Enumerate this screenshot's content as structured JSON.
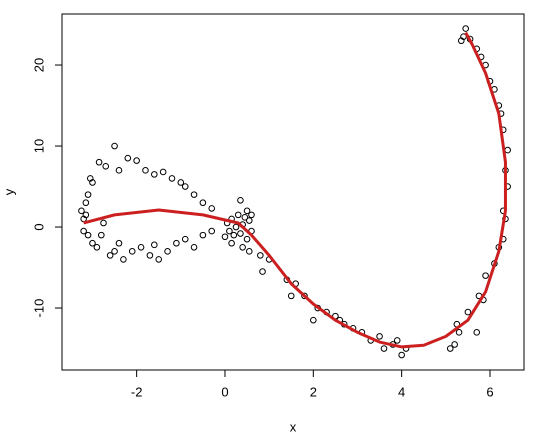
{
  "chart_data": {
    "type": "scatter",
    "xlabel": "x",
    "ylabel": "y",
    "xlim": [
      -3.69,
      6.77
    ],
    "ylim": [
      -17.65,
      26.3
    ],
    "xticks": [
      -2,
      0,
      2,
      4,
      6
    ],
    "yticks": [
      -10,
      0,
      10,
      20
    ],
    "series": [
      {
        "color": "#000000",
        "mode": "points",
        "x": [
          -3.2,
          -3.15,
          -3.1,
          -3.2,
          -3.05,
          -3.0,
          -3.1,
          -3.15,
          -3.25,
          -3.0,
          -2.9,
          -2.85,
          -2.7,
          -2.6,
          -2.8,
          -2.75,
          -2.5,
          -2.4,
          -2.2,
          -2.0,
          -1.8,
          -1.6,
          -1.4,
          -1.2,
          -1.0,
          -0.9,
          -0.7,
          -0.5,
          -0.3,
          -2.5,
          -2.3,
          -2.1,
          -1.9,
          -1.7,
          -1.5,
          -1.3,
          -1.1,
          -0.9,
          -0.7,
          -0.5,
          -0.3,
          -1.6,
          -2.4,
          0.05,
          0.1,
          0.15,
          0.2,
          0.25,
          0.3,
          0.35,
          0.4,
          0.45,
          0.5,
          0.55,
          0.6,
          0.6,
          0.5,
          0.35,
          0.15,
          0.4,
          0.0,
          0.55,
          0.8,
          1.0,
          0.85,
          1.4,
          1.5,
          1.6,
          1.8,
          2.0,
          2.1,
          2.3,
          2.5,
          2.6,
          2.7,
          2.9,
          3.1,
          3.3,
          3.5,
          3.6,
          3.8,
          3.9,
          4.0,
          4.1,
          5.1,
          5.2,
          5.25,
          5.3,
          5.5,
          5.7,
          5.75,
          5.85,
          5.9,
          6.1,
          6.2,
          6.3,
          6.35,
          6.3,
          6.4,
          6.35,
          6.4,
          6.3,
          6.25,
          6.2,
          6.1,
          6.0,
          5.9,
          5.8,
          5.7,
          5.55,
          5.45,
          5.4,
          5.35
        ],
        "values": [
          1,
          3,
          4,
          -0.5,
          6,
          5.5,
          -1,
          1.5,
          2,
          -2,
          -2.5,
          8,
          7.5,
          -3.5,
          -1,
          0.5,
          10,
          7,
          8.5,
          8.2,
          7,
          6.5,
          6.8,
          6,
          5.5,
          5,
          4,
          3,
          2.3,
          -3,
          -4,
          -3,
          -2.5,
          -3.5,
          -4,
          -3,
          -2,
          -1.5,
          -2.5,
          -1,
          -0.5,
          -2.2,
          -2,
          0.5,
          -0.5,
          1,
          -1,
          0,
          1.5,
          -0.8,
          0.3,
          1.2,
          -1.5,
          0.8,
          1.5,
          -0.5,
          2,
          3.3,
          -2,
          -2.5,
          -1.2,
          -3,
          -3.5,
          -4,
          -5.5,
          -6.5,
          -8.5,
          -7,
          -8.5,
          -11.5,
          -10,
          -10.5,
          -11,
          -11.5,
          -12,
          -12.5,
          -13,
          -14,
          -13.5,
          -15,
          -14.5,
          -14,
          -15.8,
          -15,
          -15,
          -14.5,
          -12,
          -13,
          -10.5,
          -13,
          -8.5,
          -9,
          -6,
          -4.5,
          -2.5,
          -1.5,
          1,
          2,
          5,
          7,
          9.5,
          12,
          14,
          15,
          17,
          18,
          20,
          21,
          22,
          23.2,
          24.5,
          23.5,
          23
        ]
      },
      {
        "color": "#cc2020",
        "mode": "line",
        "x": [
          -3.2,
          -2.5,
          -1.5,
          -0.5,
          0.3,
          0.6,
          1,
          1.5,
          2,
          2.5,
          3,
          3.5,
          4,
          4.5,
          5,
          5.5,
          5.9,
          6.2,
          6.35,
          6.35,
          6.2,
          5.9,
          5.6,
          5.45
        ],
        "values": [
          0.5,
          1.5,
          2.1,
          1.5,
          0.5,
          -1,
          -3.5,
          -7,
          -9.5,
          -11.5,
          -13,
          -14.2,
          -14.8,
          -14.6,
          -13.5,
          -11.5,
          -8,
          -3,
          2,
          8,
          14,
          19,
          22.5,
          24
        ]
      }
    ]
  }
}
